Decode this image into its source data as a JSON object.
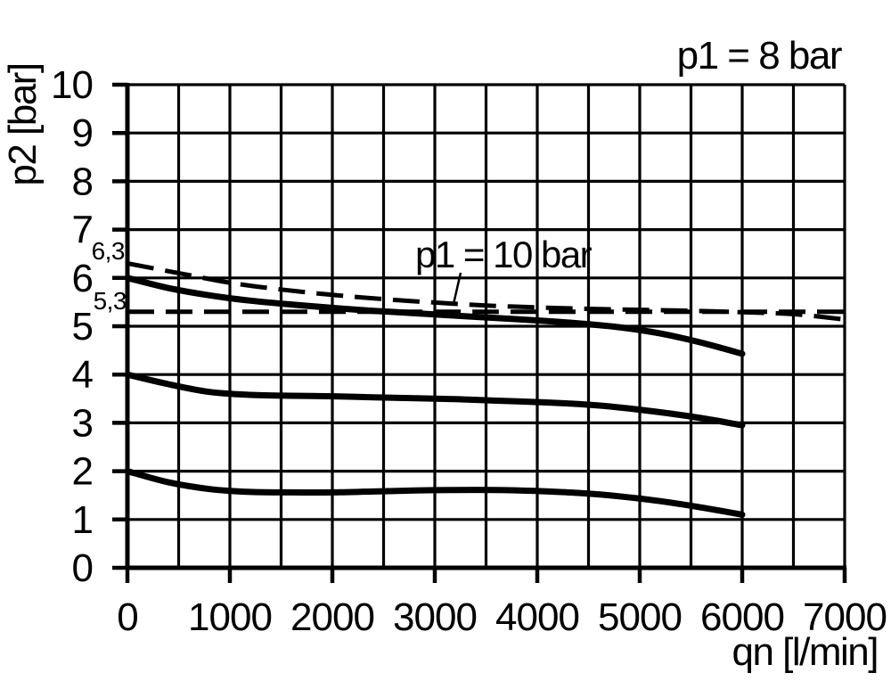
{
  "figure": {
    "title_top_right": "p1 = 8 bar",
    "annotation": "p1 = 10 bar",
    "y_axis_label": "p2 [bar]",
    "x_axis_label": "qn [l/min]",
    "ref_label_63": "6,3",
    "ref_label_53": "5,3"
  },
  "colors": {
    "foreground": "#000000",
    "background": "#ffffff"
  },
  "chart_data": {
    "type": "line",
    "title": "p1 = 8 bar",
    "xlabel": "qn [l/min]",
    "ylabel": "p2 [bar]",
    "xlim": [
      0,
      7000
    ],
    "ylim": [
      0,
      10
    ],
    "x_ticks": [
      0,
      1000,
      2000,
      3000,
      4000,
      5000,
      6000,
      7000
    ],
    "y_ticks": [
      0,
      1,
      2,
      3,
      4,
      5,
      6,
      7,
      8,
      9,
      10
    ],
    "x_minor_step": 500,
    "y_minor_step": 1,
    "grid": true,
    "legend_position": "none",
    "annotation": {
      "text": "p1 = 10 bar",
      "points_to_series": "p1 = 10 bar"
    },
    "reference_labels": [
      {
        "text": "6,3",
        "p2": 6.3
      },
      {
        "text": "5,3",
        "p2": 5.3
      }
    ],
    "series": [
      {
        "name": "p1 = 10 bar",
        "style": "dashed",
        "points": [
          [
            0,
            6.3
          ],
          [
            500,
            6.1
          ],
          [
            1000,
            5.9
          ],
          [
            1500,
            5.76
          ],
          [
            2000,
            5.65
          ],
          [
            2500,
            5.56
          ],
          [
            3000,
            5.49
          ],
          [
            3500,
            5.43
          ],
          [
            4000,
            5.39
          ],
          [
            4500,
            5.36
          ],
          [
            5000,
            5.34
          ],
          [
            5500,
            5.32
          ],
          [
            6000,
            5.29
          ],
          [
            6500,
            5.25
          ],
          [
            7000,
            5.14
          ]
        ]
      },
      {
        "name": "5,3 bar reference",
        "style": "dashed",
        "points": [
          [
            0,
            5.3
          ],
          [
            3500,
            5.3
          ],
          [
            7000,
            5.3
          ]
        ]
      },
      {
        "name": "curve starting 6 bar",
        "style": "solid",
        "points": [
          [
            0,
            6.0
          ],
          [
            400,
            5.79
          ],
          [
            800,
            5.64
          ],
          [
            1200,
            5.53
          ],
          [
            1600,
            5.45
          ],
          [
            2000,
            5.38
          ],
          [
            2400,
            5.32
          ],
          [
            2800,
            5.27
          ],
          [
            3200,
            5.22
          ],
          [
            3600,
            5.17
          ],
          [
            4000,
            5.12
          ],
          [
            4400,
            5.06
          ],
          [
            4800,
            4.98
          ],
          [
            5200,
            4.85
          ],
          [
            5600,
            4.66
          ],
          [
            6000,
            4.43
          ]
        ]
      },
      {
        "name": "curve starting 4 bar",
        "style": "solid",
        "points": [
          [
            0,
            4.0
          ],
          [
            400,
            3.8
          ],
          [
            800,
            3.64
          ],
          [
            1200,
            3.58
          ],
          [
            1600,
            3.56
          ],
          [
            2000,
            3.55
          ],
          [
            2400,
            3.53
          ],
          [
            2800,
            3.51
          ],
          [
            3200,
            3.49
          ],
          [
            3600,
            3.46
          ],
          [
            4000,
            3.43
          ],
          [
            4400,
            3.39
          ],
          [
            4800,
            3.32
          ],
          [
            5200,
            3.22
          ],
          [
            5600,
            3.1
          ],
          [
            6000,
            2.95
          ]
        ]
      },
      {
        "name": "curve starting 2 bar",
        "style": "solid",
        "points": [
          [
            0,
            2.0
          ],
          [
            400,
            1.77
          ],
          [
            800,
            1.63
          ],
          [
            1200,
            1.57
          ],
          [
            1600,
            1.56
          ],
          [
            2000,
            1.56
          ],
          [
            2400,
            1.58
          ],
          [
            2800,
            1.6
          ],
          [
            3200,
            1.61
          ],
          [
            3600,
            1.61
          ],
          [
            4000,
            1.59
          ],
          [
            4400,
            1.55
          ],
          [
            4800,
            1.48
          ],
          [
            5200,
            1.38
          ],
          [
            5600,
            1.25
          ],
          [
            6000,
            1.1
          ]
        ]
      }
    ]
  }
}
